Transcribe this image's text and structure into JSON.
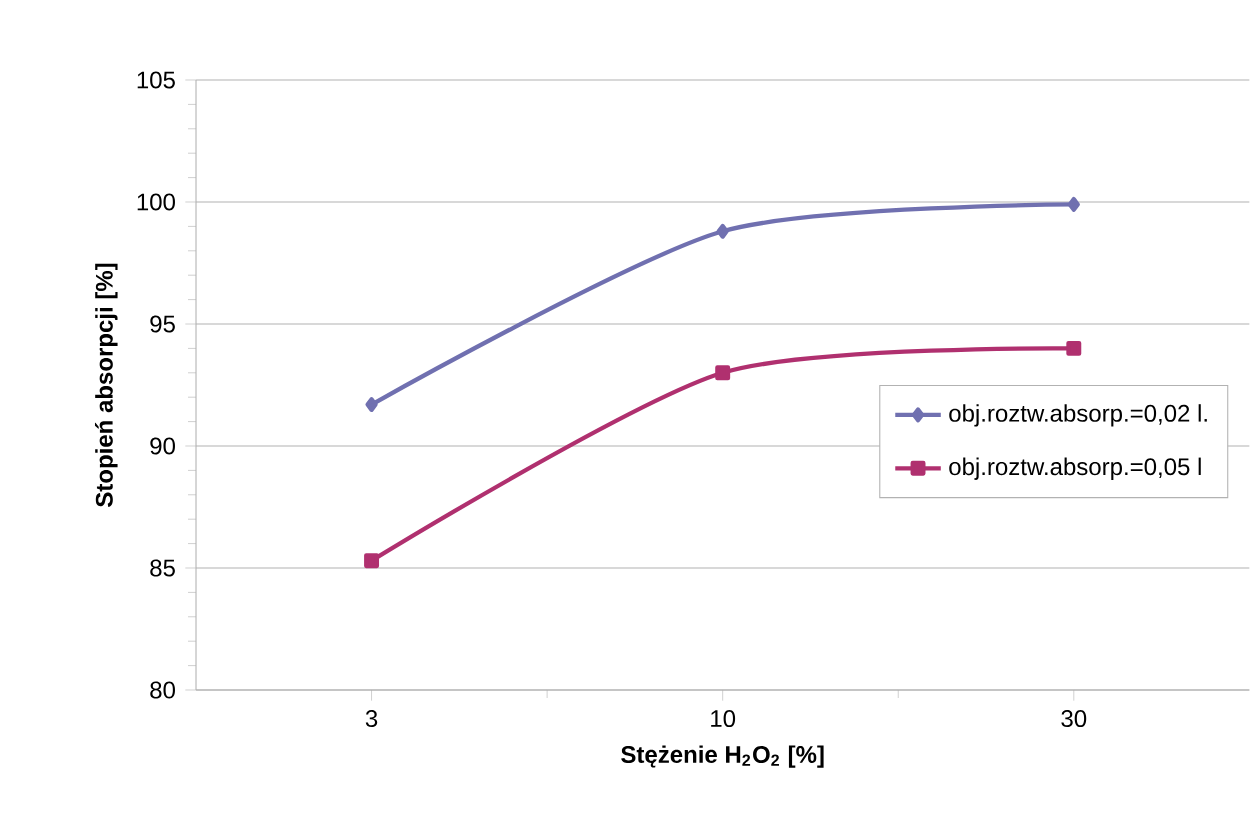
{
  "chart_data": {
    "type": "line",
    "xlabel": "Stężenie H$_{2}$O$_{2}$ [%]",
    "ylabel": "Stopień absorpcji  [%]",
    "categories": [
      "3",
      "10",
      "30"
    ],
    "series": [
      {
        "name": "obj.roztw.absorp.=0,02 l.",
        "color": "#7070b0",
        "marker": "diamond",
        "values": [
          91.7,
          98.8,
          99.9
        ]
      },
      {
        "name": "obj.roztw.absorp.=0,05 l",
        "color": "#b0306f",
        "marker": "square",
        "values": [
          85.3,
          93.0,
          94.0
        ]
      }
    ],
    "ylim": [
      80,
      105
    ],
    "yticks": [
      80,
      85,
      90,
      95,
      100,
      105
    ],
    "grid": "y",
    "legend": "right",
    "line_style": "solid"
  }
}
